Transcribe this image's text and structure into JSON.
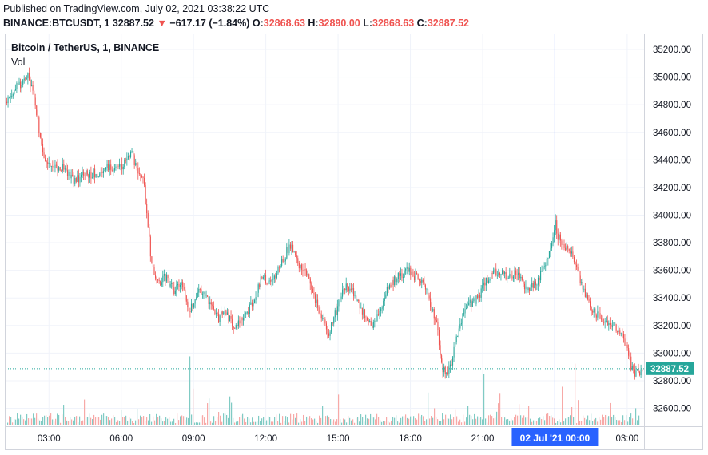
{
  "header": {
    "published": "Published on TradingView.com, July 02, 2021 03:38:22 UTC",
    "symbol": "BINANCE:BTCUSDT, 1",
    "last": "32887.52",
    "change_arrow": "▼",
    "change": "−617.17 (−1.84%)",
    "o_label": "O:",
    "o_value": "32868.63",
    "h_label": "H:",
    "h_value": "32890.00",
    "l_label": "L:",
    "l_value": "32868.63",
    "c_label": "C:",
    "c_value": "32887.52"
  },
  "pane": {
    "title": "Bitcoin / TetherUS, 1, BINANCE",
    "volume_label": "Vol"
  },
  "colors": {
    "up": "#26a69a",
    "down": "#ef5350",
    "up_volume": "#80cbc4",
    "down_volume": "#f7a9a7",
    "crosshair": "#2962ff",
    "last_price_tag": "#26a69a",
    "grid": "#f0f3fa",
    "axis_text": "#131722"
  },
  "crosshair": {
    "time": "02 Jul '21  00:00"
  },
  "last_price_label": "32887.52",
  "chart_data": {
    "type": "candlestick",
    "title": "Bitcoin / TetherUS, 1, BINANCE",
    "timeframe": "1 minute",
    "xlabel": "",
    "ylabel": "",
    "x_ticks": [
      "03:00",
      "06:00",
      "09:00",
      "12:00",
      "15:00",
      "18:00",
      "21:00",
      "00:00",
      "03:00"
    ],
    "y_ticks": [
      32600,
      32800,
      33000,
      33200,
      33400,
      33600,
      33800,
      34000,
      34200,
      34400,
      34600,
      34800,
      35000,
      35200
    ],
    "ylim": [
      32470,
      35310
    ],
    "x_range_hours": [
      1.2,
      27.7
    ],
    "last_price": 32887.52,
    "price_path": {
      "hours": [
        1.2,
        1.5,
        1.8,
        2.1,
        2.3,
        2.5,
        2.7,
        3.0,
        3.5,
        4.0,
        4.5,
        5.0,
        5.5,
        6.0,
        6.4,
        6.7,
        6.9,
        7.0,
        7.2,
        7.5,
        7.8,
        8.2,
        8.5,
        8.8,
        9.2,
        9.6,
        10.0,
        10.3,
        10.6,
        11.0,
        11.4,
        11.8,
        12.2,
        12.6,
        13.0,
        13.3,
        13.6,
        14.0,
        14.3,
        14.6,
        15.0,
        15.3,
        15.6,
        16.0,
        16.4,
        16.8,
        17.1,
        17.4,
        17.8,
        18.2,
        18.6,
        18.9,
        19.1,
        19.3,
        19.5,
        19.7,
        20.0,
        20.4,
        20.8,
        21.2,
        21.6,
        22.0,
        22.4,
        22.8,
        23.2,
        23.5,
        23.8,
        24.0,
        24.1,
        24.3,
        24.6,
        24.9,
        25.2,
        25.6,
        26.0,
        26.4,
        26.8,
        27.0,
        27.2,
        27.4,
        27.6,
        27.7
      ],
      "prices": [
        34820,
        34900,
        34950,
        35000,
        34900,
        34700,
        34450,
        34350,
        34350,
        34250,
        34300,
        34300,
        34350,
        34350,
        34450,
        34300,
        34250,
        34100,
        33700,
        33500,
        33550,
        33450,
        33500,
        33300,
        33450,
        33380,
        33250,
        33300,
        33200,
        33250,
        33350,
        33550,
        33500,
        33650,
        33780,
        33650,
        33620,
        33400,
        33250,
        33150,
        33350,
        33500,
        33450,
        33300,
        33200,
        33350,
        33500,
        33550,
        33600,
        33550,
        33500,
        33300,
        33200,
        32900,
        32850,
        32950,
        33200,
        33350,
        33400,
        33550,
        33600,
        33550,
        33600,
        33450,
        33500,
        33600,
        33750,
        33950,
        33850,
        33800,
        33750,
        33600,
        33450,
        33300,
        33250,
        33200,
        33150,
        33000,
        32880,
        32850,
        32880,
        32887
      ]
    },
    "note": "Approximately 1590 one-minute candles with volume bars; the chart script draws the candles along this price path."
  }
}
